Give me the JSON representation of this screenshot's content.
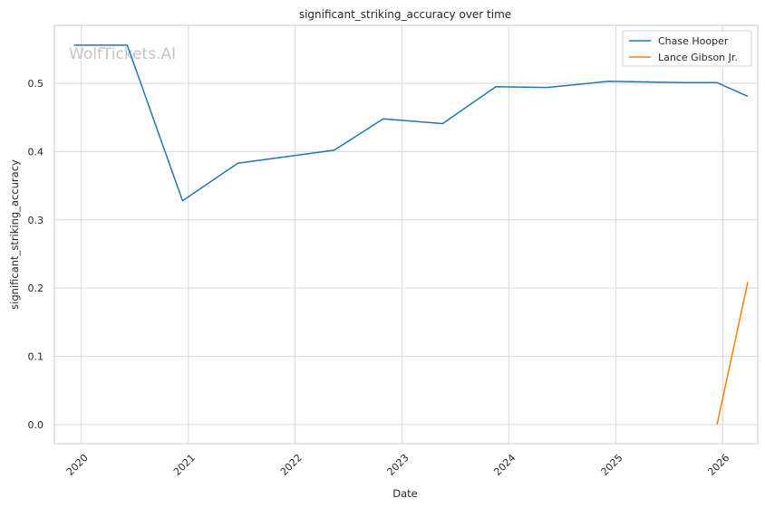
{
  "chart_data": {
    "type": "line",
    "title": "significant_striking_accuracy over time",
    "xlabel": "Date",
    "ylabel": "significant_striking_accuracy",
    "x_ticks": [
      "2020",
      "2021",
      "2022",
      "2023",
      "2024",
      "2025",
      "2026"
    ],
    "y_ticks": [
      "0.0",
      "0.1",
      "0.2",
      "0.3",
      "0.4",
      "0.5"
    ],
    "ylim": [
      -0.028,
      0.585
    ],
    "xlim": [
      "2019-10-01",
      "2026-05-01"
    ],
    "grid": true,
    "legend_position": "top-right",
    "watermark": "WolfTickets.AI",
    "series": [
      {
        "name": "Chase Hooper",
        "color": "#1f77b4",
        "points": [
          {
            "x": "2019-12-07",
            "y": 0.556
          },
          {
            "x": "2020-06-06",
            "y": 0.556
          },
          {
            "x": "2020-12-12",
            "y": 0.328
          },
          {
            "x": "2021-06-19",
            "y": 0.383
          },
          {
            "x": "2022-05-14",
            "y": 0.402
          },
          {
            "x": "2022-10-29",
            "y": 0.448
          },
          {
            "x": "2023-05-20",
            "y": 0.441
          },
          {
            "x": "2023-11-18",
            "y": 0.495
          },
          {
            "x": "2024-05-11",
            "y": 0.494
          },
          {
            "x": "2024-12-07",
            "y": 0.503
          },
          {
            "x": "2025-08-16",
            "y": 0.501
          },
          {
            "x": "2025-12-13",
            "y": 0.501
          },
          {
            "x": "2026-03-28",
            "y": 0.481
          }
        ]
      },
      {
        "name": "Lance Gibson Jr.",
        "color": "#ff7f0e",
        "points": [
          {
            "x": "2025-12-13",
            "y": 0.0
          },
          {
            "x": "2026-03-28",
            "y": 0.209
          }
        ]
      }
    ]
  }
}
